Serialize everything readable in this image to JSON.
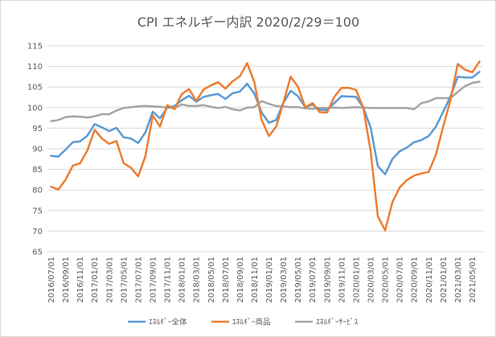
{
  "chart_data": {
    "type": "line",
    "title": "CPI エネルギー内訳 2020/2/29＝100",
    "xlabel": "",
    "ylabel": "",
    "ylim": [
      65,
      115
    ],
    "yticks": [
      "65",
      "70",
      "75",
      "80",
      "85",
      "90",
      "95",
      "100",
      "105",
      "110",
      "115"
    ],
    "grid": true,
    "legend_position": "bottom",
    "x_tick_labels": [
      "2016/07/01",
      "2016/09/01",
      "2016/11/01",
      "2017/01/01",
      "2017/03/01",
      "2017/05/01",
      "2017/07/01",
      "2017/09/01",
      "2017/11/01",
      "2018/01/01",
      "2018/03/01",
      "2018/05/01",
      "2018/07/01",
      "2018/09/01",
      "2018/11/01",
      "2019/01/01",
      "2019/03/01",
      "2019/05/01",
      "2019/07/01",
      "2019/09/01",
      "2019/11/01",
      "2020/01/01",
      "2020/03/01",
      "2020/05/01",
      "2020/07/01",
      "2020/09/01",
      "2020/11/01",
      "2021/01/01",
      "2021/03/01",
      "2021/05/01"
    ],
    "x": [
      "2016/07",
      "2016/08",
      "2016/09",
      "2016/10",
      "2016/11",
      "2016/12",
      "2017/01",
      "2017/02",
      "2017/03",
      "2017/04",
      "2017/05",
      "2017/06",
      "2017/07",
      "2017/08",
      "2017/09",
      "2017/10",
      "2017/11",
      "2017/12",
      "2018/01",
      "2018/02",
      "2018/03",
      "2018/04",
      "2018/05",
      "2018/06",
      "2018/07",
      "2018/08",
      "2018/09",
      "2018/10",
      "2018/11",
      "2018/12",
      "2019/01",
      "2019/02",
      "2019/03",
      "2019/04",
      "2019/05",
      "2019/06",
      "2019/07",
      "2019/08",
      "2019/09",
      "2019/10",
      "2019/11",
      "2019/12",
      "2020/01",
      "2020/02",
      "2020/03",
      "2020/04",
      "2020/05",
      "2020/06",
      "2020/07",
      "2020/08",
      "2020/09",
      "2020/10",
      "2020/11",
      "2020/12",
      "2021/01",
      "2021/02",
      "2021/03",
      "2021/04",
      "2021/05",
      "2021/06"
    ],
    "series": [
      {
        "name": "ｴﾈﾙｷﾞｰ全体",
        "color": "#5b9bd5",
        "values": [
          88.3,
          88.1,
          89.8,
          91.6,
          91.8,
          93.2,
          96.0,
          95.2,
          94.3,
          95.1,
          92.8,
          92.5,
          91.4,
          94.0,
          99.0,
          97.4,
          100.0,
          100.4,
          101.8,
          102.9,
          101.4,
          102.6,
          103.0,
          103.3,
          102.1,
          103.5,
          103.9,
          105.8,
          103.4,
          98.8,
          96.3,
          97.0,
          101.2,
          104.1,
          102.8,
          100.1,
          100.7,
          99.5,
          99.4,
          101.1,
          102.8,
          102.7,
          102.6,
          100.0,
          95.2,
          85.8,
          83.8,
          87.5,
          89.4,
          90.3,
          91.6,
          92.1,
          93.1,
          95.4,
          99.0,
          102.7,
          107.5,
          107.3,
          107.3,
          108.7
        ]
      },
      {
        "name": "ｴﾈﾙｷﾞｰ商品",
        "color": "#ed7d31",
        "values": [
          80.8,
          80.1,
          82.5,
          85.9,
          86.5,
          89.6,
          94.6,
          92.5,
          91.2,
          91.9,
          86.5,
          85.4,
          83.3,
          88.2,
          98.1,
          95.4,
          100.6,
          99.6,
          103.3,
          104.5,
          101.6,
          104.4,
          105.4,
          106.2,
          104.6,
          106.4,
          107.6,
          110.8,
          106.2,
          97.0,
          93.1,
          95.4,
          101.3,
          107.5,
          105.1,
          100.1,
          101.1,
          98.9,
          98.8,
          102.6,
          104.8,
          104.8,
          104.3,
          100.0,
          89.5,
          73.6,
          70.2,
          77.0,
          80.6,
          82.4,
          83.5,
          84.0,
          84.4,
          88.6,
          95.4,
          101.9,
          110.6,
          109.2,
          108.6,
          111.2
        ]
      },
      {
        "name": "ｴﾈﾙｷﾞｰｻｰﾋﾞｽ",
        "color": "#a5a5a5",
        "values": [
          96.7,
          97.0,
          97.7,
          97.9,
          97.8,
          97.6,
          97.9,
          98.4,
          98.4,
          99.3,
          99.9,
          100.1,
          100.3,
          100.4,
          100.3,
          100.2,
          100.0,
          99.9,
          100.8,
          100.4,
          100.4,
          100.6,
          100.2,
          99.9,
          100.2,
          99.6,
          99.3,
          100.0,
          100.1,
          101.6,
          100.9,
          100.4,
          100.3,
          100.1,
          100.1,
          99.8,
          99.7,
          99.9,
          99.9,
          100.0,
          99.9,
          100.0,
          100.1,
          100.0,
          99.9,
          99.9,
          99.9,
          99.9,
          99.9,
          99.9,
          99.6,
          101.1,
          101.5,
          102.3,
          102.3,
          102.3,
          103.8,
          105.2,
          106.0,
          106.3
        ]
      }
    ]
  }
}
